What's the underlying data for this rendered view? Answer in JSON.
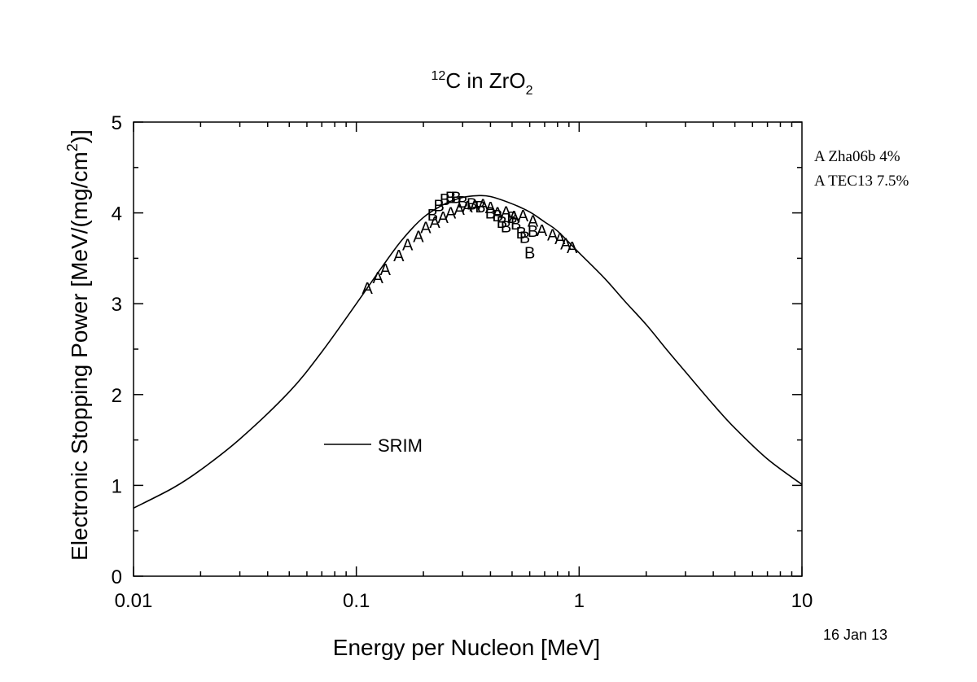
{
  "chart_data": {
    "type": "scatter",
    "title": {
      "mass": "12",
      "element": "C in ZrO",
      "subscript": "2"
    },
    "xlabel": "Energy per Nucleon [MeV]",
    "ylabel": {
      "main": "Electronic Stopping Power [MeV/(mg/cm",
      "superscript": "2",
      "end": ")]"
    },
    "x_scale": "log",
    "xlim": [
      0.01,
      10
    ],
    "ylim": [
      0,
      5
    ],
    "x_ticks": [
      {
        "value": 0.01,
        "label": "0.01"
      },
      {
        "value": 0.1,
        "label": "0.1"
      },
      {
        "value": 1,
        "label": "1"
      },
      {
        "value": 10,
        "label": "10"
      }
    ],
    "y_ticks": [
      {
        "value": 0,
        "label": "0"
      },
      {
        "value": 1,
        "label": "1"
      },
      {
        "value": 2,
        "label": "2"
      },
      {
        "value": 3,
        "label": "3"
      },
      {
        "value": 4,
        "label": "4"
      },
      {
        "value": 5,
        "label": "5"
      }
    ],
    "grid": false,
    "legend_placement": "right of plot, top",
    "legend": [
      {
        "label": "A Zha06b 4%"
      },
      {
        "label": "A TEC13 7.5%"
      }
    ],
    "curve_label": {
      "text": "SRIM",
      "placement": "lower-left inside plot"
    },
    "series": [
      {
        "name": "SRIM",
        "kind": "line",
        "x": [
          0.01,
          0.015,
          0.02,
          0.03,
          0.05,
          0.07,
          0.1,
          0.13,
          0.16,
          0.2,
          0.25,
          0.3,
          0.35,
          0.4,
          0.5,
          0.6,
          0.7,
          0.8,
          1.0,
          1.3,
          1.6,
          2.0,
          2.5,
          3.0,
          4.0,
          5.0,
          7.0,
          10.0
        ],
        "y": [
          0.75,
          0.97,
          1.17,
          1.51,
          2.03,
          2.47,
          3.0,
          3.4,
          3.7,
          3.95,
          4.1,
          4.17,
          4.19,
          4.18,
          4.1,
          4.01,
          3.9,
          3.8,
          3.56,
          3.28,
          3.03,
          2.77,
          2.48,
          2.25,
          1.89,
          1.63,
          1.29,
          1.01
        ]
      },
      {
        "name": "Zha06b",
        "marker": "A",
        "x": [
          0.112,
          0.125,
          0.135,
          0.155,
          0.17,
          0.19,
          0.205,
          0.225,
          0.245,
          0.265,
          0.29,
          0.315,
          0.34,
          0.37,
          0.4,
          0.43,
          0.47,
          0.51,
          0.56,
          0.62,
          0.68,
          0.76,
          0.82,
          0.87,
          0.93
        ],
        "y": [
          3.17,
          3.29,
          3.38,
          3.53,
          3.65,
          3.74,
          3.84,
          3.9,
          3.95,
          4.0,
          4.04,
          4.07,
          4.08,
          4.09,
          4.06,
          4.0,
          4.01,
          3.96,
          3.97,
          3.91,
          3.81,
          3.76,
          3.72,
          3.66,
          3.62
        ]
      },
      {
        "name": "TEC13",
        "marker": "B",
        "x": [
          0.22,
          0.235,
          0.25,
          0.265,
          0.28,
          0.3,
          0.33,
          0.36,
          0.4,
          0.43,
          0.45,
          0.47,
          0.5,
          0.52,
          0.55,
          0.57,
          0.6,
          0.62
        ],
        "y": [
          3.98,
          4.08,
          4.15,
          4.17,
          4.17,
          4.12,
          4.1,
          4.07,
          4.0,
          3.97,
          3.9,
          3.85,
          3.95,
          3.88,
          3.78,
          3.73,
          3.56,
          3.8
        ]
      }
    ]
  },
  "footer": {
    "date": "16 Jan 13"
  }
}
